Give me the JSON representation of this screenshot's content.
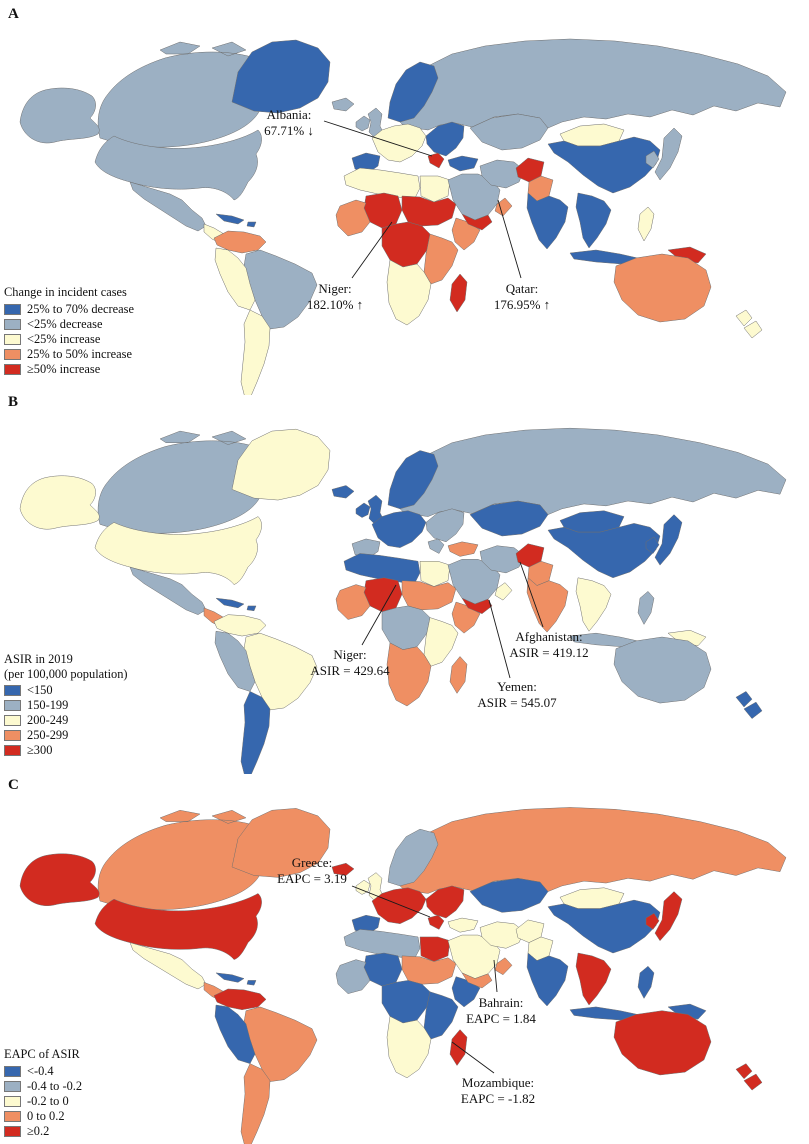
{
  "palette": [
    "#3667ae",
    "#9cb0c3",
    "#fdfad0",
    "#ef8f63",
    "#d22b20"
  ],
  "map_border_color": "#6f6f6f",
  "panels": [
    {
      "label": "A",
      "legend": {
        "title_lines": [
          "Change in incident cases"
        ],
        "items": [
          {
            "label": "25% to 70% decrease",
            "color": "#3667ae"
          },
          {
            "label": "<25% decrease",
            "color": "#9cb0c3"
          },
          {
            "label": "<25% increase",
            "color": "#fdfad0"
          },
          {
            "label": "25% to 50% increase",
            "color": "#ef8f63"
          },
          {
            "label": "≥50% increase",
            "color": "#d22b20"
          }
        ]
      },
      "annotations": [
        {
          "id": "albania",
          "line1": "Albania:",
          "line2": "67.71% ↓"
        },
        {
          "id": "niger",
          "line1": "Niger:",
          "line2": "182.10% ↑"
        },
        {
          "id": "qatar",
          "line1": "Qatar:",
          "line2": "176.95% ↑"
        }
      ],
      "regions": {
        "alaska": 1,
        "canada": 1,
        "usa": 1,
        "greenland": 0,
        "mexico": 1,
        "centralAmerica": 2,
        "caribbean": 0,
        "colombiaVenezuela": 3,
        "brazil": 1,
        "peruBolivia": 2,
        "argentinaChile": 2,
        "iceland": 1,
        "ukIreland": 1,
        "scandinavia": 0,
        "westEurope": 2,
        "eastEurope": 0,
        "iberia": 0,
        "balkans": 4,
        "turkey": 0,
        "maghreb": 2,
        "egypt": 2,
        "niger": 4,
        "sahelEast": 4,
        "westAfricaCoast": 3,
        "hornAfrica": 3,
        "centralAfrica": 4,
        "eastAfrica": 3,
        "southernAfrica": 2,
        "madagascar": 4,
        "middleEast": 1,
        "yemen": 4,
        "oman": 3,
        "iran": 1,
        "centralAsia": 1,
        "afghanistan": 4,
        "pakistan": 3,
        "russia": 1,
        "mongolia": 2,
        "china": 0,
        "india": 0,
        "seAsia": 0,
        "indonesia": 0,
        "philippines": 2,
        "png": 4,
        "japan": 1,
        "korea": 1,
        "australia": 3,
        "newZealand": 2
      }
    },
    {
      "label": "B",
      "legend": {
        "title_lines": [
          "ASIR in 2019",
          "(per 100,000 population)"
        ],
        "items": [
          {
            "label": "<150",
            "color": "#3667ae"
          },
          {
            "label": "150-199",
            "color": "#9cb0c3"
          },
          {
            "label": "200-249",
            "color": "#fdfad0"
          },
          {
            "label": "250-299",
            "color": "#ef8f63"
          },
          {
            "label": "≥300",
            "color": "#d22b20"
          }
        ]
      },
      "annotations": [
        {
          "id": "niger",
          "line1": "Niger:",
          "line2": "ASIR = 429.64"
        },
        {
          "id": "afghanistan",
          "line1": "Afghanistan:",
          "line2": "ASIR = 419.12"
        },
        {
          "id": "yemen",
          "line1": "Yemen:",
          "line2": "ASIR = 545.07"
        }
      ],
      "regions": {
        "alaska": 2,
        "canada": 1,
        "usa": 2,
        "greenland": 2,
        "mexico": 1,
        "centralAmerica": 3,
        "caribbean": 0,
        "colombiaVenezuela": 2,
        "brazil": 2,
        "peruBolivia": 1,
        "argentinaChile": 0,
        "iceland": 0,
        "ukIreland": 0,
        "scandinavia": 0,
        "westEurope": 0,
        "eastEurope": 1,
        "iberia": 1,
        "balkans": 1,
        "turkey": 3,
        "maghreb": 0,
        "egypt": 2,
        "niger": 4,
        "sahelEast": 3,
        "westAfricaCoast": 3,
        "hornAfrica": 3,
        "centralAfrica": 1,
        "eastAfrica": 2,
        "southernAfrica": 3,
        "madagascar": 3,
        "middleEast": 1,
        "yemen": 4,
        "oman": 2,
        "iran": 1,
        "centralAsia": 0,
        "afghanistan": 4,
        "pakistan": 3,
        "russia": 1,
        "mongolia": 0,
        "china": 0,
        "india": 3,
        "seAsia": 2,
        "indonesia": 1,
        "philippines": 1,
        "png": 2,
        "japan": 0,
        "korea": 0,
        "australia": 1,
        "newZealand": 0
      }
    },
    {
      "label": "C",
      "legend": {
        "title_lines": [
          "EAPC of ASIR"
        ],
        "items": [
          {
            "label": "<-0.4",
            "color": "#3667ae"
          },
          {
            "label": "-0.4 to -0.2",
            "color": "#9cb0c3"
          },
          {
            "label": "-0.2 to 0",
            "color": "#fdfad0"
          },
          {
            "label": "0 to 0.2",
            "color": "#ef8f63"
          },
          {
            "label": "≥0.2",
            "color": "#d22b20"
          }
        ]
      },
      "annotations": [
        {
          "id": "greece",
          "line1": "Greece:",
          "line2": "EAPC = 3.19"
        },
        {
          "id": "bahrain",
          "line1": "Bahrain:",
          "line2": "EAPC = 1.84"
        },
        {
          "id": "mozambique",
          "line1": "Mozambique:",
          "line2": "EAPC = -1.82"
        }
      ],
      "regions": {
        "alaska": 4,
        "canada": 3,
        "usa": 4,
        "greenland": 3,
        "mexico": 2,
        "centralAmerica": 3,
        "caribbean": 0,
        "colombiaVenezuela": 4,
        "brazil": 3,
        "peruBolivia": 0,
        "argentinaChile": 3,
        "iceland": 4,
        "ukIreland": 2,
        "scandinavia": 1,
        "westEurope": 4,
        "eastEurope": 4,
        "iberia": 0,
        "balkans": 4,
        "turkey": 2,
        "maghreb": 1,
        "egypt": 4,
        "niger": 0,
        "sahelEast": 3,
        "westAfricaCoast": 1,
        "hornAfrica": 0,
        "centralAfrica": 0,
        "eastAfrica": 0,
        "southernAfrica": 2,
        "madagascar": 4,
        "middleEast": 2,
        "yemen": 3,
        "oman": 3,
        "iran": 2,
        "centralAsia": 0,
        "afghanistan": 2,
        "pakistan": 2,
        "russia": 3,
        "mongolia": 2,
        "china": 0,
        "india": 0,
        "seAsia": 4,
        "indonesia": 0,
        "philippines": 0,
        "png": 0,
        "japan": 4,
        "korea": 4,
        "australia": 4,
        "newZealand": 4
      }
    }
  ]
}
